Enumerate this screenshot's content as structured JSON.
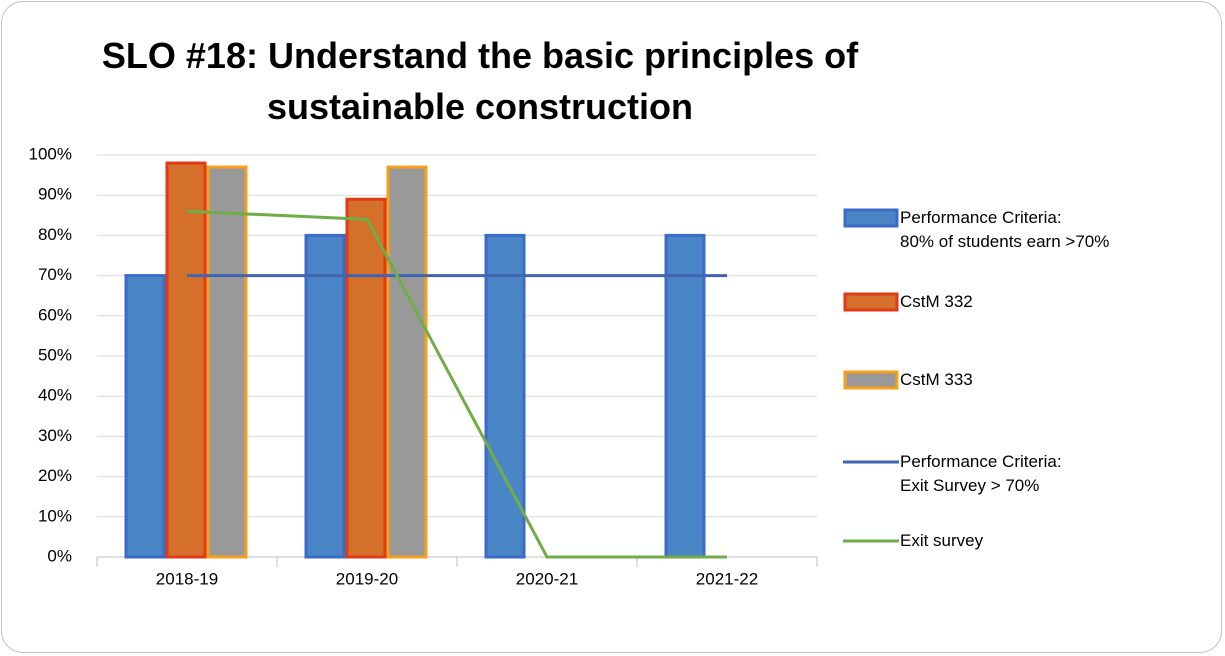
{
  "chart_data": {
    "type": "bar",
    "title": "SLO #18: Understand the basic principles of\nsustainable construction",
    "categories": [
      "2018-19",
      "2019-20",
      "2020-21",
      "2021-22"
    ],
    "series": [
      {
        "name": "Performance Criteria:\n80% of students earn >70%",
        "mark": "bar",
        "color": "#4a86c5",
        "edgecolor": "#3a6bc9",
        "values": [
          70,
          80,
          80,
          80
        ]
      },
      {
        "name": "CstM 332",
        "mark": "bar",
        "color": "#d4702a",
        "edgecolor": "#e03a17",
        "values": [
          98,
          89,
          null,
          null
        ]
      },
      {
        "name": "CstM 333",
        "mark": "bar",
        "color": "#999999",
        "edgecolor": "#f6a01a",
        "values": [
          97,
          97,
          null,
          null
        ]
      },
      {
        "name": "Performance Criteria:\nExit Survey > 70%",
        "mark": "line",
        "color": "#4064b0",
        "values": [
          70,
          70,
          70,
          70
        ]
      },
      {
        "name": "Exit survey",
        "mark": "line",
        "color": "#70ad47",
        "values": [
          86,
          84,
          0,
          0
        ]
      }
    ],
    "ylim": [
      0,
      100
    ],
    "yticks": [
      {
        "value": 0,
        "label": "0%"
      },
      {
        "value": 10,
        "label": "10%"
      },
      {
        "value": 20,
        "label": "20%"
      },
      {
        "value": 30,
        "label": "30%"
      },
      {
        "value": 40,
        "label": "40%"
      },
      {
        "value": 50,
        "label": "50%"
      },
      {
        "value": 60,
        "label": "60%"
      },
      {
        "value": 70,
        "label": "70%"
      },
      {
        "value": 80,
        "label": "80%"
      },
      {
        "value": 90,
        "label": "90%"
      },
      {
        "value": 100,
        "label": "100%"
      }
    ],
    "grid": true,
    "legend": "right"
  }
}
